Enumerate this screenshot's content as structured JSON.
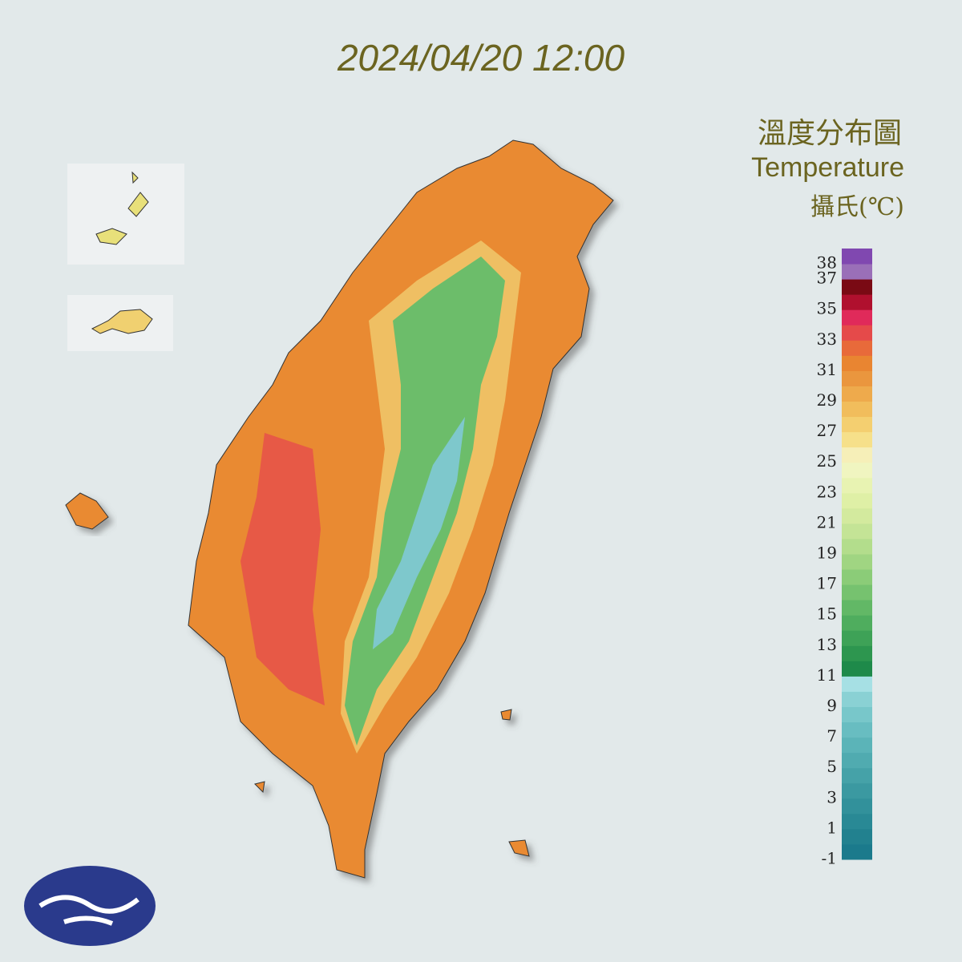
{
  "header": {
    "timestamp": "2024/04/20 12:00"
  },
  "legend": {
    "title": "溫度分布圖",
    "subtitle": "Temperature",
    "unit": "攝氏(℃)",
    "ticks": [
      38,
      37,
      35,
      33,
      31,
      29,
      27,
      25,
      23,
      21,
      19,
      17,
      15,
      13,
      11,
      9,
      7,
      5,
      3,
      1,
      -1
    ],
    "range": [
      -1,
      39
    ],
    "colors": [
      "#1b7a8c",
      "#22818f",
      "#298995",
      "#32919b",
      "#3b99a1",
      "#45a2a8",
      "#50abb0",
      "#5bb4b8",
      "#68bdc1",
      "#78c7ca",
      "#8ad1d4",
      "#a6e0e4",
      "#1e8a4a",
      "#2d964f",
      "#3ea257",
      "#4fad5e",
      "#62b866",
      "#76c26f",
      "#8bcc78",
      "#a0d582",
      "#b3dd8c",
      "#c4e496",
      "#d3ea9e",
      "#dff0a6",
      "#e8f3b2",
      "#f0f5c0",
      "#f6efb8",
      "#f6e08a",
      "#f4cf70",
      "#f1bd5c",
      "#eeaa4c",
      "#ea963e",
      "#e98531",
      "#e86a3a",
      "#e54a4a",
      "#e02a5a",
      "#b0102e",
      "#7a0a14",
      "#9a6fb8",
      "#8048b0"
    ]
  }
}
